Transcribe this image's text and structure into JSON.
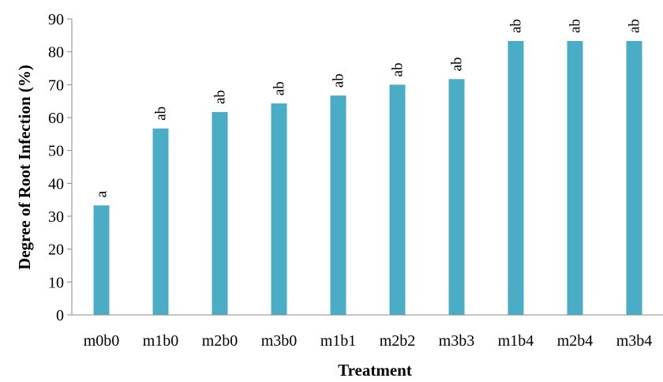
{
  "chart_data": {
    "type": "bar",
    "title": "",
    "xlabel": "Treatment",
    "ylabel": "Degree of Root Infection (%)",
    "ylim": [
      0,
      90
    ],
    "yticks": [
      0,
      10,
      20,
      30,
      40,
      50,
      60,
      70,
      80,
      90
    ],
    "grid": false,
    "legend": "none",
    "bar_color": "#4BACC6",
    "categories": [
      "m0b0",
      "m1b0",
      "m2b0",
      "m3b0",
      "m1b1",
      "m2b2",
      "m3b3",
      "m1b4",
      "m2b4",
      "m3b4"
    ],
    "values": [
      33.3,
      56.7,
      61.7,
      64.3,
      66.7,
      70.0,
      71.7,
      83.3,
      83.3,
      83.3
    ],
    "data_labels": [
      "a",
      "ab",
      "ab",
      "ab",
      "ab",
      "ab",
      "ab",
      "ab",
      "ab",
      "ab"
    ]
  }
}
